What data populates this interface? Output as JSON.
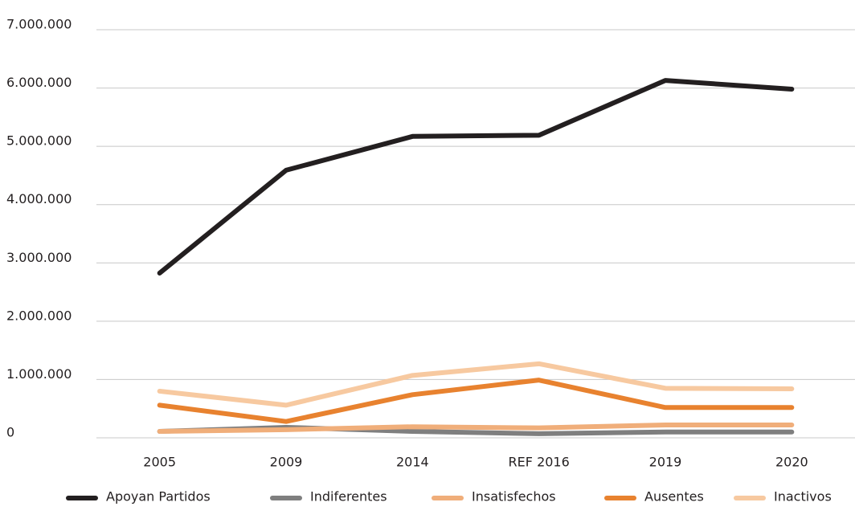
{
  "chart_data": {
    "type": "line",
    "categories": [
      "2005",
      "2009",
      "2014",
      "REF 2016",
      "2019",
      "2020"
    ],
    "series": [
      {
        "name": "Apoyan Partidos",
        "color": "#231f20",
        "values": [
          2825000,
          4590000,
          5170000,
          5190000,
          6130000,
          5980000
        ]
      },
      {
        "name": "Indiferentes",
        "color": "#7f7f7f",
        "values": [
          110000,
          180000,
          110000,
          70000,
          100000,
          100000
        ]
      },
      {
        "name": "Insatisfechos",
        "color": "#f0ae7a",
        "values": [
          110000,
          140000,
          190000,
          170000,
          220000,
          220000
        ]
      },
      {
        "name": "Ausentes",
        "color": "#e8822f",
        "values": [
          560000,
          280000,
          740000,
          990000,
          520000,
          520000
        ]
      },
      {
        "name": "Inactivos",
        "color": "#f7c9a0",
        "values": [
          800000,
          560000,
          1070000,
          1270000,
          850000,
          840000
        ]
      }
    ],
    "ylim": [
      0,
      7000000
    ],
    "yticks": [
      0,
      {
        "value": 1000000,
        "label": "1.000.000"
      },
      {
        "value": 2000000,
        "label": "2.000.000"
      },
      {
        "value": 3000000,
        "label": "3.000.000"
      },
      {
        "value": 4000000,
        "label": "4.000.000"
      },
      {
        "value": 5000000,
        "label": "5.000.000"
      },
      {
        "value": 6000000,
        "label": "6.000.000"
      },
      {
        "value": 7000000,
        "label": "7.000.000"
      }
    ],
    "grid": true,
    "legend": "bottom"
  }
}
